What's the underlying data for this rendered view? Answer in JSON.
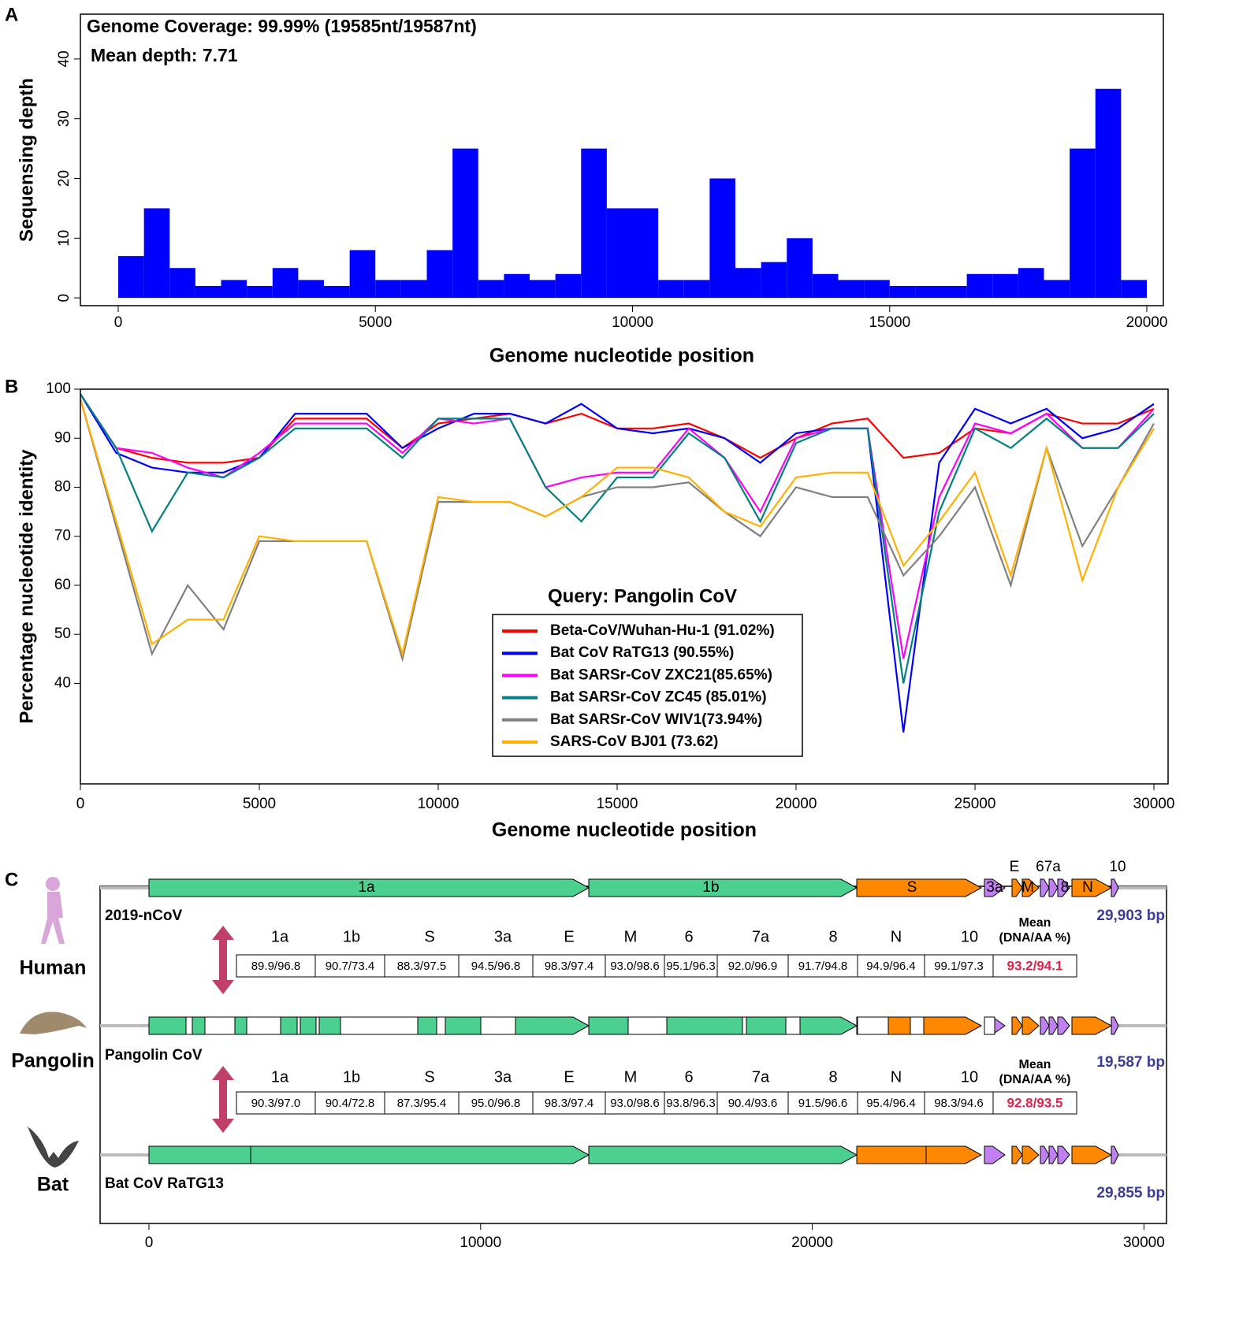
{
  "chart_data": [
    {
      "type": "bar",
      "panel_label": "A",
      "annotations": [
        "Genome Coverage: 99.99% (19585nt/19587nt)",
        "Mean depth: 7.71"
      ],
      "x_label": "Genome nucleotide position",
      "y_label": "Sequensing depth",
      "color": "#0000ff",
      "x": [
        0,
        500,
        1000,
        1500,
        2000,
        2500,
        3000,
        3500,
        4000,
        4500,
        5000,
        5500,
        6000,
        6500,
        7000,
        7500,
        8000,
        8500,
        9000,
        9500,
        10000,
        10500,
        11000,
        11500,
        12000,
        12500,
        13000,
        13500,
        14000,
        14500,
        15000,
        15500,
        16000,
        16500,
        17000,
        17500,
        18000,
        18500,
        19000,
        19500
      ],
      "values": [
        7,
        15,
        5,
        2,
        3,
        2,
        5,
        3,
        2,
        8,
        3,
        3,
        8,
        25,
        3,
        4,
        3,
        4,
        25,
        15,
        15,
        3,
        3,
        20,
        5,
        6,
        10,
        4,
        3,
        3,
        2,
        2,
        2,
        4,
        4,
        5,
        3,
        25,
        35,
        3
      ],
      "xlim": [
        -736,
        20322
      ],
      "ylim": [
        -1.3,
        47.5
      ],
      "xticks": [
        0,
        5000,
        10000,
        15000,
        20000
      ],
      "yticks": [
        0,
        10,
        20,
        30,
        40
      ]
    },
    {
      "type": "line",
      "panel_label": "B",
      "x_label": "Genome nucleotide position",
      "y_label": "Percentage nucleotide identity",
      "legend_title": "Query: Pangolin CoV",
      "x": [
        0,
        1000,
        2000,
        3000,
        4000,
        5000,
        6000,
        7000,
        8000,
        9000,
        10000,
        11000,
        12000,
        13000,
        14000,
        15000,
        16000,
        17000,
        18000,
        19000,
        20000,
        21000,
        22000,
        23000,
        24000,
        25000,
        26000,
        27000,
        28000,
        29000,
        30000
      ],
      "series": [
        {
          "name": "Beta-CoV/Wuhan-Hu-1 (91.02%)",
          "color": "#ff0000",
          "values": [
            99,
            88,
            86,
            85,
            85,
            86,
            94,
            94,
            94,
            88,
            93,
            94,
            95,
            93,
            95,
            92,
            92,
            93,
            90,
            86,
            90,
            93,
            94,
            86,
            87,
            92,
            91,
            95,
            93,
            93,
            96
          ]
        },
        {
          "name": "Bat CoV RaTG13 (90.55%)",
          "color": "#0000ff",
          "values": [
            99,
            87,
            84,
            83,
            83,
            86,
            95,
            95,
            95,
            88,
            92,
            95,
            95,
            93,
            97,
            92,
            91,
            92,
            90,
            85,
            91,
            92,
            92,
            30,
            85,
            96,
            93,
            96,
            90,
            92,
            97
          ]
        },
        {
          "name": "Bat SARSr-CoV ZXC21(85.65%)",
          "color": "#ff00ff",
          "values": [
            99,
            88,
            87,
            84,
            82,
            87,
            93,
            93,
            93,
            87,
            94,
            93,
            94,
            80,
            82,
            83,
            83,
            92,
            86,
            75,
            90,
            92,
            92,
            45,
            78,
            93,
            91,
            95,
            88,
            88,
            96
          ]
        },
        {
          "name": "Bat SARSr-CoV ZC45 (85.01%)",
          "color": "#008080",
          "values": [
            99,
            88,
            71,
            83,
            82,
            86,
            92,
            92,
            92,
            86,
            94,
            94,
            94,
            80,
            73,
            82,
            82,
            91,
            86,
            73,
            89,
            92,
            92,
            40,
            75,
            92,
            88,
            94,
            88,
            88,
            95
          ]
        },
        {
          "name": "Bat SARSr-CoV WIV1(73.94%)",
          "color": "#808080",
          "values": [
            98,
            72,
            46,
            60,
            51,
            69,
            69,
            69,
            69,
            45,
            77,
            77,
            77,
            74,
            78,
            80,
            80,
            81,
            75,
            70,
            80,
            78,
            78,
            62,
            70,
            80,
            60,
            88,
            68,
            80,
            93
          ]
        },
        {
          "name": "SARS-CoV BJ01 (73.62)",
          "color": "#ffb000",
          "values": [
            98,
            73,
            48,
            53,
            53,
            70,
            69,
            69,
            69,
            46,
            78,
            77,
            77,
            74,
            78,
            84,
            84,
            82,
            75,
            72,
            82,
            83,
            83,
            64,
            73,
            83,
            62,
            88,
            61,
            80,
            92
          ]
        }
      ],
      "xlim": [
        0,
        30396
      ],
      "ylim": [
        19.5,
        100
      ],
      "xticks": [
        0,
        5000,
        10000,
        15000,
        20000,
        25000,
        30000
      ],
      "yticks": [
        40,
        50,
        60,
        70,
        80,
        90,
        100
      ]
    }
  ],
  "genome_comparison": {
    "panel_label": "C",
    "xlim": [
      -1473,
      30680
    ],
    "xticks": [
      0,
      10000,
      20000,
      30000
    ],
    "gene_labels": [
      "1a",
      "1b",
      "S",
      "3a",
      "E",
      "M",
      "67a",
      "8",
      "N",
      "10"
    ],
    "genomes": [
      {
        "species": "Human",
        "name": "2019-nCoV",
        "length": "29,903 bp"
      },
      {
        "species": "Pangolin",
        "name": "Pangolin CoV",
        "length": "19,587 bp"
      },
      {
        "species": "Bat",
        "name": "Bat CoV RaTG13",
        "length": "29,855 bp"
      }
    ],
    "tables": [
      {
        "headers": [
          "1a",
          "1b",
          "S",
          "3a",
          "E",
          "M",
          "6",
          "7a",
          "8",
          "N",
          "10"
        ],
        "mean_header": [
          "Mean",
          "(DNA/AA %)"
        ],
        "values": [
          "89.9/96.8",
          "90.7/73.4",
          "88.3/97.5",
          "94.5/96.8",
          "98.3/97.4",
          "93.0/98.6",
          "95.1/96.3",
          "92.0/96.9",
          "91.7/94.8",
          "94.9/96.4",
          "99.1/97.3"
        ],
        "mean": "93.2/94.1"
      },
      {
        "headers": [
          "1a",
          "1b",
          "S",
          "3a",
          "E",
          "M",
          "6",
          "7a",
          "8",
          "N",
          "10"
        ],
        "mean_header": [
          "Mean",
          "(DNA/AA %)"
        ],
        "values": [
          "90.3/97.0",
          "90.4/72.8",
          "87.3/95.4",
          "95.0/96.8",
          "98.3/97.4",
          "93.0/98.6",
          "93.8/96.3",
          "90.4/93.6",
          "91.5/96.6",
          "95.4/96.4",
          "98.3/94.6"
        ],
        "mean": "92.8/93.5"
      }
    ]
  }
}
